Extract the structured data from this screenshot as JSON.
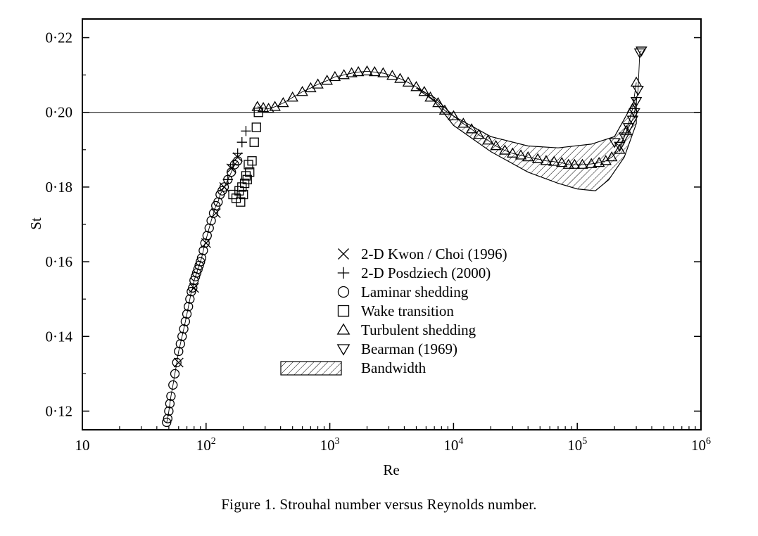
{
  "caption": "Figure 1.  Strouhal number versus Reynolds number.",
  "chart_data": {
    "type": "scatter",
    "title": "",
    "xlabel": "Re",
    "ylabel": "St",
    "xscale": "log",
    "xlim": [
      10,
      1000000
    ],
    "ylim": [
      0.115,
      0.225
    ],
    "x_ticks": [
      {
        "value": 10,
        "base": "10",
        "exp": ""
      },
      {
        "value": 100,
        "base": "10",
        "exp": "2"
      },
      {
        "value": 1000,
        "base": "10",
        "exp": "3"
      },
      {
        "value": 10000,
        "base": "10",
        "exp": "4"
      },
      {
        "value": 100000,
        "base": "10",
        "exp": "5"
      },
      {
        "value": 1000000,
        "base": "10",
        "exp": "6"
      }
    ],
    "y_ticks": [
      {
        "value": 0.12,
        "label": "0·12"
      },
      {
        "value": 0.14,
        "label": "0·14"
      },
      {
        "value": 0.16,
        "label": "0·16"
      },
      {
        "value": 0.18,
        "label": "0·18"
      },
      {
        "value": 0.2,
        "label": "0·20"
      },
      {
        "value": 0.22,
        "label": "0·22"
      }
    ],
    "reference_line": {
      "y": 0.2
    },
    "legend": {
      "position": "center",
      "entries": [
        {
          "marker": "x",
          "label": "2-D Kwon / Choi (1996)"
        },
        {
          "marker": "plus",
          "label": "2-D Posdziech (2000)"
        },
        {
          "marker": "circle",
          "label": "Laminar shedding"
        },
        {
          "marker": "square",
          "label": "Wake transition"
        },
        {
          "marker": "triangle-up",
          "label": "Turbulent shedding"
        },
        {
          "marker": "triangle-down",
          "label": "Bearman (1969)"
        },
        {
          "marker": "hatch",
          "label": "Bandwidth"
        }
      ]
    },
    "bandwidth": {
      "upper": [
        [
          5000,
          0.2065
        ],
        [
          7000,
          0.204
        ],
        [
          10000,
          0.199
        ],
        [
          20000,
          0.1935
        ],
        [
          40000,
          0.191
        ],
        [
          70000,
          0.1905
        ],
        [
          130000,
          0.1915
        ],
        [
          200000,
          0.1935
        ],
        [
          300000,
          0.204
        ]
      ],
      "lower": [
        [
          5000,
          0.2065
        ],
        [
          7000,
          0.203
        ],
        [
          10000,
          0.1965
        ],
        [
          20000,
          0.1895
        ],
        [
          40000,
          0.184
        ],
        [
          70000,
          0.181
        ],
        [
          100000,
          0.1795
        ],
        [
          140000,
          0.179
        ],
        [
          180000,
          0.182
        ],
        [
          240000,
          0.188
        ],
        [
          300000,
          0.197
        ]
      ]
    },
    "series": [
      {
        "name": "2-D Kwon / Choi (1996)",
        "marker": "x",
        "x": [
          60,
          80,
          100,
          120,
          140,
          160,
          180
        ],
        "y": [
          0.133,
          0.153,
          0.165,
          0.173,
          0.18,
          0.185,
          0.188
        ]
      },
      {
        "name": "2-D Posdziech (2000)",
        "marker": "plus",
        "x": [
          150,
          165,
          180,
          195,
          210
        ],
        "y": [
          0.182,
          0.186,
          0.189,
          0.192,
          0.195
        ]
      },
      {
        "name": "Laminar shedding",
        "marker": "circle",
        "x": [
          48,
          49,
          50,
          51,
          52,
          54,
          56,
          58,
          60,
          62,
          64,
          66,
          68,
          70,
          72,
          74,
          76,
          78,
          80,
          82,
          84,
          86,
          88,
          90,
          92,
          95,
          98,
          102,
          106,
          110,
          115,
          120,
          125,
          130,
          135,
          140,
          150,
          160,
          170,
          180
        ],
        "y": [
          0.117,
          0.118,
          0.12,
          0.122,
          0.124,
          0.127,
          0.13,
          0.133,
          0.136,
          0.138,
          0.14,
          0.142,
          0.144,
          0.146,
          0.148,
          0.15,
          0.152,
          0.153,
          0.155,
          0.156,
          0.157,
          0.158,
          0.159,
          0.16,
          0.161,
          0.163,
          0.165,
          0.167,
          0.169,
          0.171,
          0.173,
          0.175,
          0.176,
          0.178,
          0.179,
          0.18,
          0.182,
          0.184,
          0.186,
          0.187
        ]
      },
      {
        "name": "Wake transition",
        "marker": "square",
        "x": [
          165,
          175,
          185,
          195,
          205,
          215,
          225,
          235,
          245,
          255,
          265,
          190,
          200,
          210,
          220
        ],
        "y": [
          0.178,
          0.177,
          0.179,
          0.18,
          0.181,
          0.182,
          0.184,
          0.187,
          0.192,
          0.196,
          0.2,
          0.176,
          0.178,
          0.183,
          0.186
        ]
      },
      {
        "name": "Turbulent shedding",
        "marker": "triangle-up",
        "x": [
          260,
          290,
          320,
          360,
          420,
          500,
          600,
          700,
          800,
          950,
          1100,
          1300,
          1500,
          1700,
          2000,
          2300,
          2700,
          3200,
          3700,
          4300,
          5000,
          5800,
          6500,
          7500,
          8500,
          10000,
          12000,
          14000,
          16000,
          19000,
          22000,
          26000,
          30000,
          35000,
          40000,
          48000,
          56000,
          65000,
          75000,
          85000,
          95000,
          110000,
          130000,
          150000,
          170000,
          190000,
          220000,
          250000,
          280000,
          300000
        ],
        "y": [
          0.2015,
          0.2012,
          0.201,
          0.2015,
          0.2025,
          0.204,
          0.2055,
          0.2065,
          0.2075,
          0.2085,
          0.2095,
          0.21,
          0.2105,
          0.2108,
          0.211,
          0.2108,
          0.2105,
          0.2098,
          0.209,
          0.208,
          0.2068,
          0.2055,
          0.204,
          0.2025,
          0.2005,
          0.199,
          0.197,
          0.1955,
          0.194,
          0.1925,
          0.191,
          0.1898,
          0.189,
          0.1885,
          0.188,
          0.1875,
          0.187,
          0.1868,
          0.1865,
          0.186,
          0.186,
          0.186,
          0.1862,
          0.1865,
          0.187,
          0.188,
          0.19,
          0.195,
          0.201,
          0.208
        ]
      },
      {
        "name": "Bearman (1969)",
        "marker": "triangle-down",
        "x": [
          200000,
          220000,
          240000,
          260000,
          280000,
          290000,
          300000,
          310000,
          320000,
          330000
        ],
        "y": [
          0.192,
          0.191,
          0.1935,
          0.196,
          0.198,
          0.2,
          0.203,
          0.206,
          0.216,
          0.2165
        ]
      }
    ]
  }
}
